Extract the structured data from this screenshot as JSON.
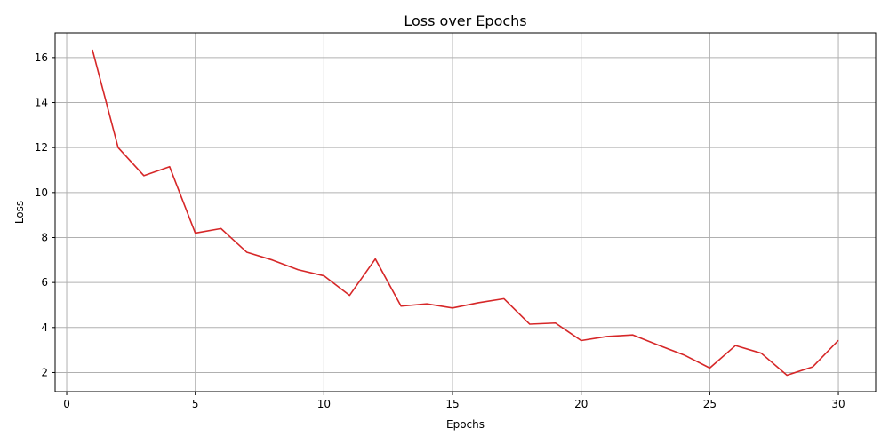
{
  "chart_data": {
    "type": "line",
    "title": "Loss over Epochs",
    "xlabel": "Epochs",
    "ylabel": "Loss",
    "xlim": [
      -0.45,
      31.45
    ],
    "ylim": [
      1.15,
      17.1
    ],
    "xticks": [
      0,
      5,
      10,
      15,
      20,
      25,
      30
    ],
    "yticks": [
      2,
      4,
      6,
      8,
      10,
      12,
      14,
      16
    ],
    "grid": true,
    "color": "#d62728",
    "series": [
      {
        "x": [
          1,
          2,
          3,
          4,
          5,
          6,
          7,
          8,
          9,
          10,
          11,
          12,
          13,
          14,
          15,
          16,
          17,
          18,
          19,
          20,
          21,
          22,
          23,
          24,
          25,
          26,
          27,
          28,
          29,
          30
        ],
        "values": [
          16.35,
          12.0,
          10.75,
          11.15,
          8.2,
          8.4,
          7.35,
          7.0,
          6.57,
          6.3,
          5.43,
          7.05,
          4.95,
          5.05,
          4.87,
          5.1,
          5.28,
          4.15,
          4.2,
          3.42,
          3.6,
          3.67,
          3.22,
          2.78,
          2.2,
          3.2,
          2.86,
          1.88,
          2.25,
          3.43
        ]
      }
    ]
  }
}
